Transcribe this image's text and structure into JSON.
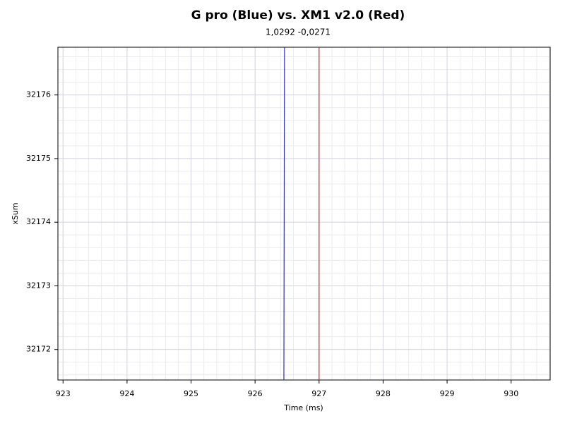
{
  "chart_data": {
    "type": "line",
    "title": "G pro (Blue) vs. XM1 v2.0 (Red)",
    "subtitle": "1,0292 -0,0271",
    "x_label": "Time (ms)",
    "y_label": "xSum",
    "series": [
      {
        "name": "G pro",
        "color": "#2b2bd6",
        "x": [
          926.45,
          926.46
        ],
        "values": [
          32171.52,
          32176.75
        ]
      },
      {
        "name": "XM1 v2.0",
        "color": "#d62b2b",
        "x": [
          927.0,
          927.0
        ],
        "values": [
          32171.52,
          32176.75
        ]
      }
    ],
    "xlim": [
      922.92,
      930.61
    ],
    "xticks": [
      923,
      924,
      925,
      926,
      927,
      928,
      929,
      930
    ],
    "ylim": [
      32171.52,
      32176.75
    ],
    "yticks": [
      32172,
      32173,
      32174,
      32175,
      32176
    ],
    "grid": true
  }
}
